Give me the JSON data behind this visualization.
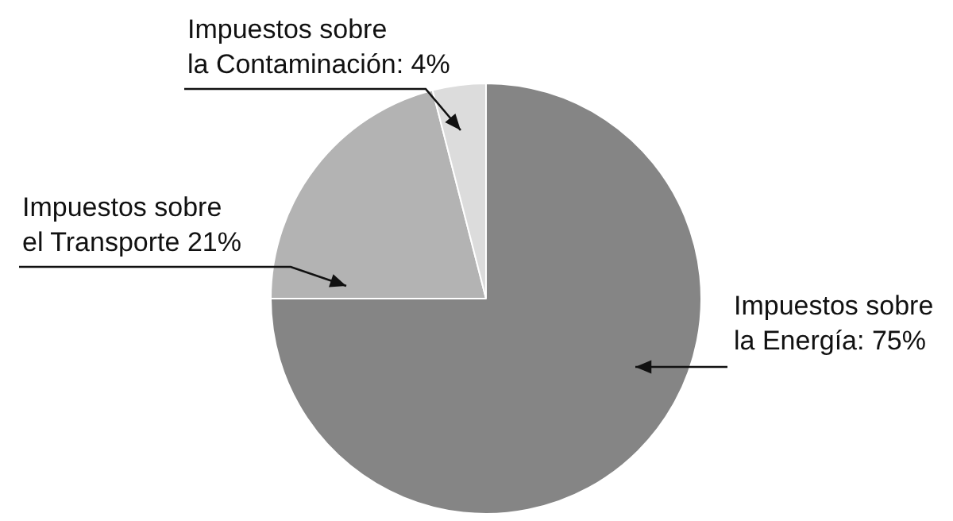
{
  "chart_data": {
    "type": "pie",
    "categories": [
      "Impuestos sobre la Energía",
      "Impuestos sobre el Transporte",
      "Impuestos sobre la Contaminación"
    ],
    "values": [
      75,
      21,
      4
    ],
    "value_labels": [
      "75%",
      "21%",
      "4%"
    ],
    "colors": [
      "#858585",
      "#b3b3b3",
      "#dcdcdc"
    ],
    "legend": false
  }
}
